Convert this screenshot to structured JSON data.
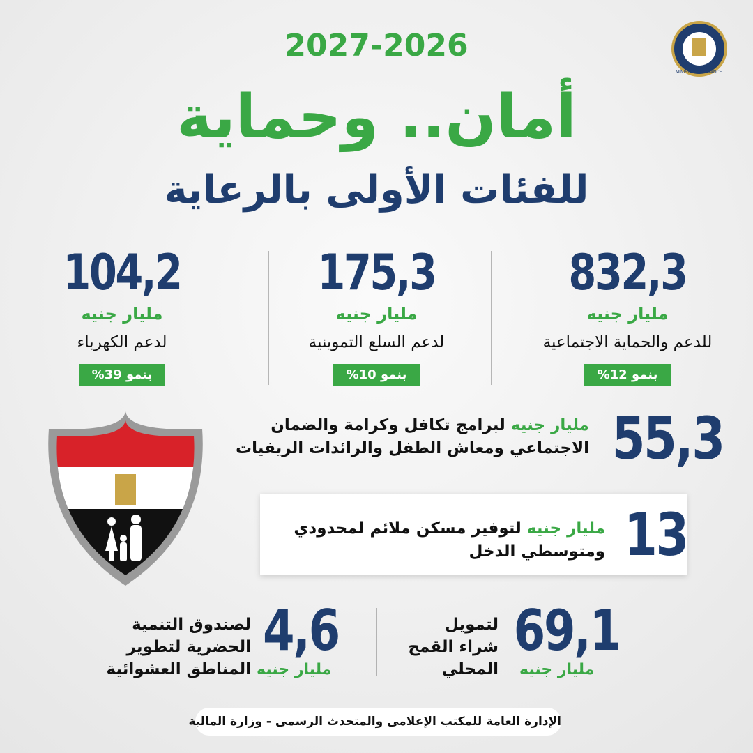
{
  "logo": "MINISTRY OF FINANCE",
  "header": {
    "years": "2027-2026",
    "title": "أمان.. وحماية",
    "subtitle": "للفئات الأولى بالرعاية"
  },
  "stats": [
    {
      "value": "832,3",
      "unit": "مليار جنيه",
      "label": "للدعم والحماية الاجتماعية",
      "growth": "بنمو 12%"
    },
    {
      "value": "175,3",
      "unit": "مليار جنيه",
      "label": "لدعم السلع التموينية",
      "growth": "بنمو 10%"
    },
    {
      "value": "104,2",
      "unit": "مليار جنيه",
      "label": "لدعم الكهرباء",
      "growth": "بنمو 39%"
    }
  ],
  "highlights": [
    {
      "value": "55,3",
      "unit": "مليار جنيه",
      "lines": [
        "لبرامج تكافل وكرامة والضمان",
        "الاجتماعي ومعاش الطفل والرائدات الريفيات"
      ]
    },
    {
      "value": "13",
      "unit": "مليار جنيه",
      "lines": [
        "لتوفير مسكن ملائم لمحدودي",
        "ومتوسطي الدخل"
      ]
    }
  ],
  "bottom": [
    {
      "value": "69,1",
      "unit": "مليار جنيه",
      "lines": [
        "لتمويل",
        "شراء القمح",
        "المحلي"
      ]
    },
    {
      "value": "4,6",
      "unit": "مليار جنيه",
      "lines": [
        "لصندوق التنمية",
        "الحضرية لتطوير",
        "المناطق العشوائية"
      ]
    }
  ],
  "footer": "الإدارة العامة للمكتب الإعلامى والمتحدث الرسمى - وزارة المالية"
}
